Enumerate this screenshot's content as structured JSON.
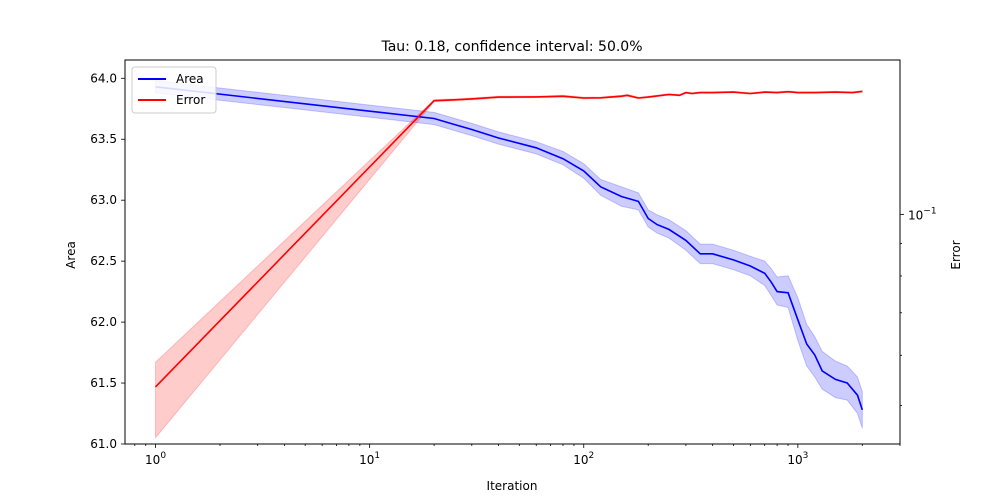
{
  "chart_data": {
    "type": "line",
    "title": "Tau: 0.18, confidence interval: 50.0%",
    "xlabel": "Iteration",
    "ylabel": "Area",
    "y2label": "Error",
    "xscale": "log",
    "xlim": [
      0.72,
      3000
    ],
    "ylim": [
      61.0,
      64.15
    ],
    "y2scale": "log",
    "y2lim": [
      0.0435,
      0.175
    ],
    "grid": false,
    "legend": "top-left",
    "x_ticks": [
      {
        "value": 1,
        "base": "10",
        "exp": "0"
      },
      {
        "value": 10,
        "base": "10",
        "exp": "1"
      },
      {
        "value": 100,
        "base": "10",
        "exp": "2"
      },
      {
        "value": 1000,
        "base": "10",
        "exp": "3"
      }
    ],
    "y_ticks": [
      "61.0",
      "61.5",
      "62.0",
      "62.5",
      "63.0",
      "63.5",
      "64.0"
    ],
    "y2_ticks": [
      {
        "value": 0.1,
        "base": "10",
        "exp": "−1"
      }
    ],
    "y2_minor_ticks": [
      0.05,
      0.06,
      0.07,
      0.08,
      0.09
    ],
    "series": [
      {
        "name": "Area",
        "axis": "left",
        "color": "#0000ff",
        "band_color": "#0000ff",
        "x": [
          1,
          20,
          25,
          30,
          40,
          60,
          80,
          100,
          120,
          150,
          180,
          200,
          220,
          250,
          300,
          350,
          400,
          500,
          600,
          700,
          750,
          800,
          900,
          1000,
          1100,
          1200,
          1300,
          1500,
          1700,
          1900,
          2000
        ],
        "y": [
          63.93,
          63.67,
          63.62,
          63.58,
          63.51,
          63.43,
          63.34,
          63.24,
          63.11,
          63.03,
          62.99,
          62.85,
          62.8,
          62.76,
          62.67,
          62.56,
          62.56,
          62.51,
          62.46,
          62.4,
          62.33,
          62.25,
          62.24,
          62.02,
          61.82,
          61.73,
          61.6,
          61.53,
          61.5,
          61.4,
          61.28
        ],
        "lo": [
          63.88,
          63.62,
          63.57,
          63.53,
          63.46,
          63.38,
          63.29,
          63.18,
          63.04,
          62.95,
          62.92,
          62.78,
          62.73,
          62.69,
          62.59,
          62.48,
          62.48,
          62.43,
          62.38,
          62.3,
          62.22,
          62.14,
          62.12,
          61.85,
          61.64,
          61.55,
          61.45,
          61.38,
          61.36,
          61.25,
          61.13
        ],
        "hi": [
          63.98,
          63.72,
          63.67,
          63.63,
          63.56,
          63.48,
          63.4,
          63.3,
          63.17,
          63.11,
          63.06,
          62.92,
          62.88,
          62.84,
          62.75,
          62.64,
          62.64,
          62.59,
          62.54,
          62.5,
          62.44,
          62.37,
          62.38,
          62.2,
          61.98,
          61.88,
          61.76,
          61.68,
          61.64,
          61.55,
          61.43
        ]
      },
      {
        "name": "Error",
        "axis": "right",
        "color": "#ff0000",
        "band_color": "#ff0000",
        "x": [
          1,
          20,
          25,
          30,
          40,
          60,
          80,
          100,
          120,
          150,
          160,
          180,
          200,
          250,
          280,
          300,
          320,
          350,
          400,
          500,
          600,
          700,
          800,
          900,
          1000,
          1200,
          1500,
          1800,
          2000
        ],
        "y": [
          0.0535,
          0.151,
          0.1515,
          0.152,
          0.153,
          0.1531,
          0.1535,
          0.1525,
          0.1526,
          0.1535,
          0.154,
          0.1525,
          0.153,
          0.1545,
          0.154,
          0.1555,
          0.155,
          0.1555,
          0.1555,
          0.1558,
          0.155,
          0.1558,
          0.1555,
          0.156,
          0.1555,
          0.1555,
          0.1558,
          0.1555,
          0.1562
        ],
        "lo": [
          0.0445,
          0.1505,
          0.151,
          0.1515,
          0.1525,
          0.1527,
          0.153,
          0.152,
          0.1522,
          0.153,
          0.1535,
          0.1521,
          0.1526,
          0.1541,
          0.1536,
          0.1551,
          0.1546,
          0.1551,
          0.1551,
          0.1554,
          0.1546,
          0.1554,
          0.1551,
          0.1556,
          0.1551,
          0.1551,
          0.1554,
          0.1551,
          0.1558
        ],
        "hi": [
          0.0585,
          0.1515,
          0.152,
          0.1525,
          0.1535,
          0.1535,
          0.154,
          0.153,
          0.153,
          0.154,
          0.1545,
          0.1529,
          0.1534,
          0.1549,
          0.1544,
          0.1559,
          0.1554,
          0.1559,
          0.1559,
          0.1562,
          0.1554,
          0.1562,
          0.1559,
          0.1564,
          0.1559,
          0.1559,
          0.1562,
          0.1559,
          0.1566
        ]
      }
    ]
  }
}
